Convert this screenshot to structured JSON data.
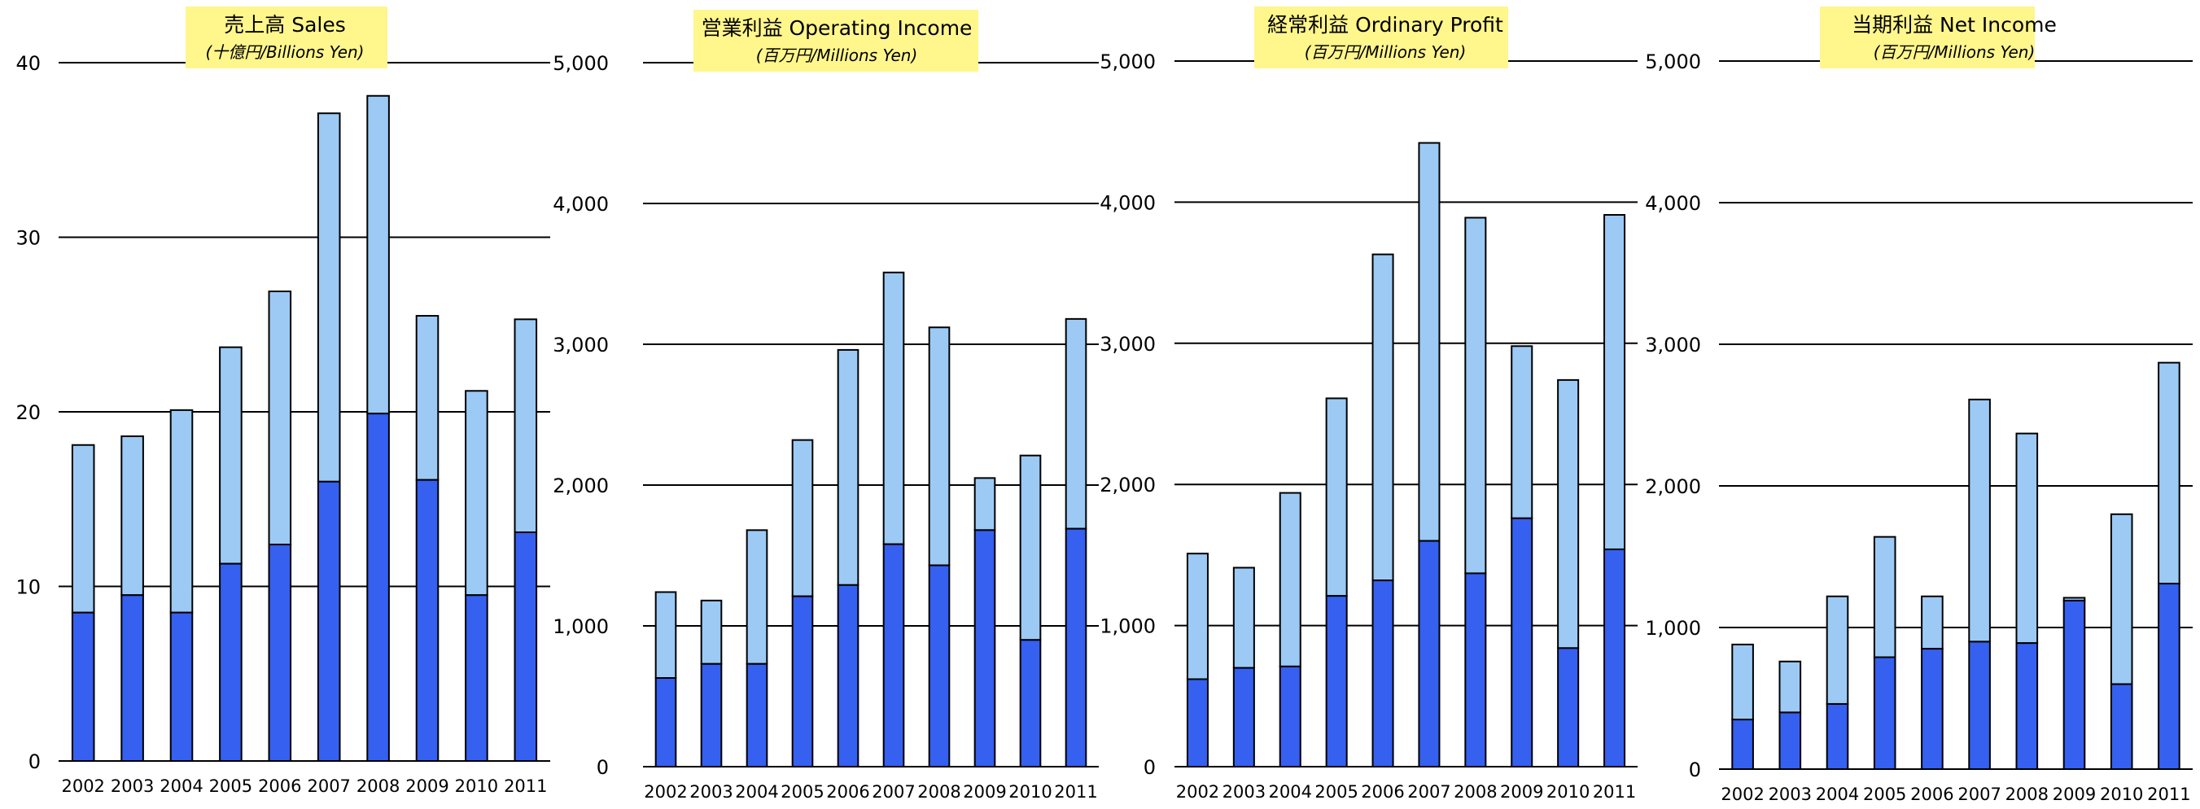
{
  "colors": {
    "upper_segment": "#9ccaf5",
    "lower_segment": "#3560f0",
    "title_box": "#fff68c",
    "gridline": "#000000",
    "bar_outline": "#000000"
  },
  "chart_data": [
    {
      "type": "bar",
      "stacked": true,
      "title": "売上高 Sales",
      "subtitle": "(十億円/Billions Yen)",
      "categories": [
        "2002",
        "2003",
        "2004",
        "2005",
        "2006",
        "2007",
        "2008",
        "2009",
        "2010",
        "2011"
      ],
      "series": [
        {
          "values": [
            8.5,
            9.5,
            8.5,
            11.3,
            12.4,
            16.0,
            19.9,
            16.1,
            9.5,
            13.1
          ]
        },
        {
          "values": [
            9.6,
            9.1,
            11.6,
            12.4,
            14.5,
            21.1,
            18.2,
            9.4,
            11.7,
            12.2
          ]
        }
      ],
      "totals": [
        18.1,
        18.6,
        20.1,
        23.7,
        26.9,
        37.1,
        38.1,
        25.5,
        21.2,
        25.3
      ],
      "ylim": [
        0,
        40
      ],
      "yticks": [
        "0",
        "10",
        "20",
        "30",
        "40"
      ],
      "axis_side": "left",
      "grid": true
    },
    {
      "type": "bar",
      "stacked": true,
      "title": "営業利益 Operating Income",
      "subtitle": "(百万円/Millions Yen)",
      "categories": [
        "2002",
        "2003",
        "2004",
        "2005",
        "2006",
        "2007",
        "2008",
        "2009",
        "2010",
        "2011"
      ],
      "series": [
        {
          "values": [
            630,
            730,
            730,
            1210,
            1290,
            1580,
            1430,
            1680,
            900,
            1690
          ]
        },
        {
          "values": [
            610,
            450,
            950,
            1110,
            1670,
            1930,
            1690,
            370,
            1310,
            1490
          ]
        }
      ],
      "totals": [
        1240,
        1180,
        1680,
        2320,
        2960,
        3510,
        3120,
        2050,
        2210,
        3180
      ],
      "ylim": [
        0,
        5000
      ],
      "yticks": [
        "0",
        "1,000",
        "2,000",
        "3,000",
        "4,000",
        "5,000"
      ],
      "axis_side": "left",
      "grid": true
    },
    {
      "type": "bar",
      "stacked": true,
      "title": "経常利益 Ordinary Profit",
      "subtitle": "(百万円/Millions Yen)",
      "categories": [
        "2002",
        "2003",
        "2004",
        "2005",
        "2006",
        "2007",
        "2008",
        "2009",
        "2010",
        "2011"
      ],
      "series": [
        {
          "values": [
            620,
            700,
            710,
            1210,
            1320,
            1600,
            1370,
            1760,
            840,
            1540
          ]
        },
        {
          "values": [
            890,
            710,
            1230,
            1400,
            2310,
            2820,
            2520,
            1220,
            1900,
            2370
          ]
        }
      ],
      "totals": [
        1510,
        1410,
        1940,
        2610,
        3630,
        4420,
        3890,
        2980,
        2740,
        3910
      ],
      "ylim": [
        0,
        5000
      ],
      "yticks": [
        "0",
        "1,000",
        "2,000",
        "3,000",
        "4,000",
        "5,000"
      ],
      "axis_side": "left",
      "grid": true
    },
    {
      "type": "bar",
      "stacked": true,
      "title": "当期利益 Net Income",
      "subtitle": "(百万円/Millions Yen)",
      "categories": [
        "2002",
        "2003",
        "2004",
        "2005",
        "2006",
        "2007",
        "2008",
        "2009",
        "2010",
        "2011"
      ],
      "series": [
        {
          "values": [
            350,
            400,
            460,
            790,
            850,
            900,
            890,
            1190,
            600,
            1310
          ]
        },
        {
          "values": [
            530,
            360,
            760,
            850,
            370,
            1710,
            1480,
            20,
            1200,
            1560
          ]
        }
      ],
      "totals": [
        880,
        760,
        1220,
        1640,
        1220,
        2610,
        2370,
        1210,
        1800,
        2870
      ],
      "ylim": [
        0,
        5000
      ],
      "yticks": [
        "0",
        "1,000",
        "2,000",
        "3,000",
        "4,000",
        "5,000"
      ],
      "axis_side": "left",
      "grid": true
    }
  ]
}
